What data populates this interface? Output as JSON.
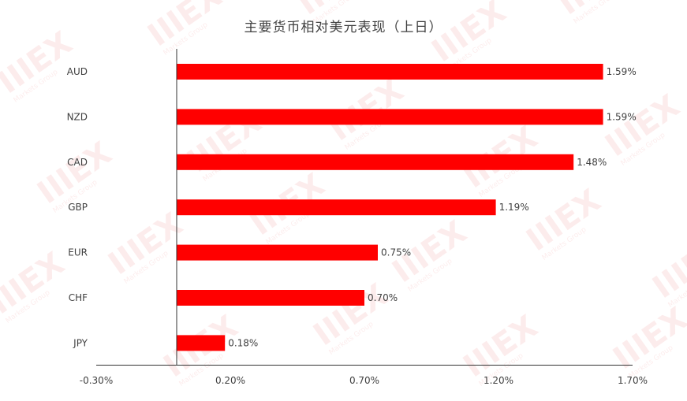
{
  "chart_data": {
    "type": "bar",
    "orientation": "horizontal",
    "title": "主要货币相对美元表现（上日）",
    "categories": [
      "AUD",
      "NZD",
      "CAD",
      "GBP",
      "EUR",
      "CHF",
      "JPY"
    ],
    "values": [
      1.59,
      1.59,
      1.48,
      1.19,
      0.75,
      0.7,
      0.18
    ],
    "data_labels": [
      "1.59%",
      "1.59%",
      "1.48%",
      "1.19%",
      "0.75%",
      "0.70%",
      "0.18%"
    ],
    "xticks": [
      -0.3,
      0.2,
      0.7,
      1.2,
      1.7
    ],
    "xtick_labels": [
      "-0.30%",
      "0.20%",
      "0.70%",
      "1.20%",
      "1.70%"
    ],
    "xlim": [
      -0.3,
      1.7
    ],
    "xlabel": "",
    "ylabel": "",
    "grid": false,
    "legend": "none",
    "bar_color": "#ff0000"
  }
}
